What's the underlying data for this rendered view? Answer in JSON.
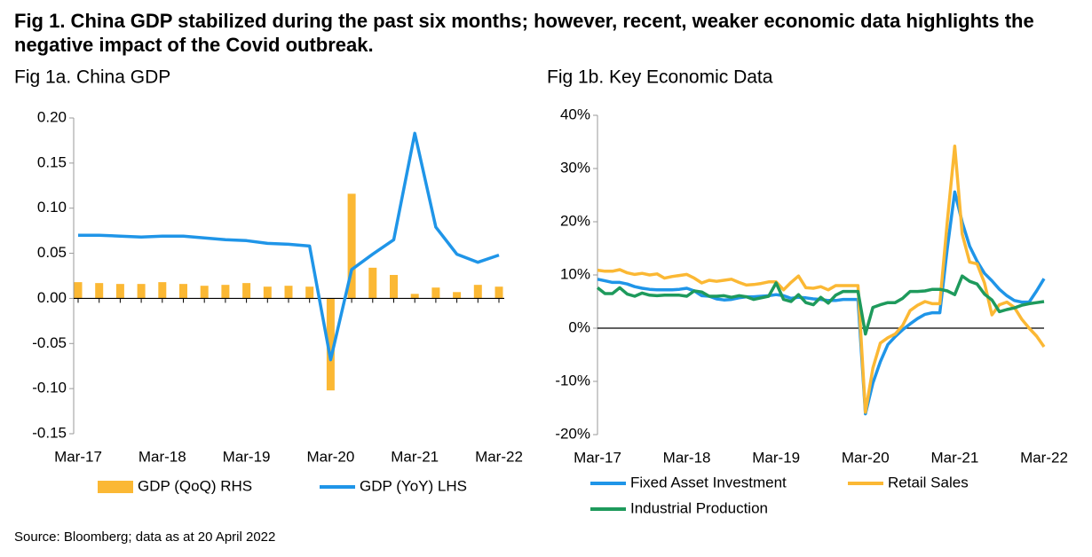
{
  "title": "Fig 1. China GDP stabilized during the past six months; however, recent, weaker economic data highlights the negative impact of the Covid outbreak.",
  "source": "Source: Bloomberg; data as at 20 April 2022",
  "chart_data": [
    {
      "type": "combo",
      "title": "Fig 1a. China GDP",
      "categories": [
        "Mar-17",
        null,
        null,
        null,
        "Mar-18",
        null,
        null,
        null,
        "Mar-19",
        null,
        null,
        null,
        "Mar-20",
        null,
        null,
        null,
        "Mar-21",
        null,
        null,
        null,
        "Mar-22"
      ],
      "series": [
        {
          "name": "GDP (QoQ) RHS",
          "type": "bar",
          "color": "#fbb834",
          "values": [
            0.018,
            0.017,
            0.016,
            0.016,
            0.018,
            0.016,
            0.014,
            0.015,
            0.017,
            0.013,
            0.014,
            0.013,
            -0.102,
            0.116,
            0.034,
            0.026,
            0.005,
            0.012,
            0.007,
            0.015,
            0.013
          ]
        },
        {
          "name": "GDP (YoY) LHS",
          "type": "line",
          "color": "#1f95e8",
          "values": [
            0.07,
            0.07,
            0.069,
            0.068,
            0.069,
            0.069,
            0.067,
            0.065,
            0.064,
            0.061,
            0.06,
            0.058,
            -0.068,
            0.032,
            0.049,
            0.065,
            0.183,
            0.079,
            0.049,
            0.04,
            0.048
          ]
        }
      ],
      "ylim": [
        -0.15,
        0.2
      ],
      "yticks": [
        {
          "value": -0.15,
          "label": "-0.15"
        },
        {
          "value": -0.1,
          "label": "-0.10"
        },
        {
          "value": -0.05,
          "label": "-0.05"
        },
        {
          "value": 0,
          "label": "0.00"
        },
        {
          "value": 0.05,
          "label": "0.05"
        },
        {
          "value": 0.1,
          "label": "0.10"
        },
        {
          "value": 0.15,
          "label": "0.15"
        },
        {
          "value": 0.2,
          "label": "0.20"
        }
      ]
    },
    {
      "type": "line",
      "title": "Fig 1b. Key Economic Data",
      "categories": [
        "Mar-17",
        null,
        null,
        null,
        null,
        null,
        null,
        null,
        null,
        null,
        null,
        null,
        "Mar-18",
        null,
        null,
        null,
        null,
        null,
        null,
        null,
        null,
        null,
        null,
        null,
        "Mar-19",
        null,
        null,
        null,
        null,
        null,
        null,
        null,
        null,
        null,
        null,
        null,
        "Mar-20",
        null,
        null,
        null,
        null,
        null,
        null,
        null,
        null,
        null,
        null,
        null,
        "Mar-21",
        null,
        null,
        null,
        null,
        null,
        null,
        null,
        null,
        null,
        null,
        null,
        "Mar-22"
      ],
      "series": [
        {
          "name": "Fixed Asset Investment",
          "color": "#1f95e8",
          "values": [
            9.2,
            8.9,
            8.6,
            8.6,
            8.3,
            7.8,
            7.5,
            7.3,
            7.2,
            7.2,
            7.2,
            7.3,
            7.5,
            7.0,
            6.1,
            6.0,
            5.5,
            5.3,
            5.4,
            5.7,
            5.9,
            5.9,
            6.0,
            6.1,
            6.3,
            6.1,
            5.6,
            5.8,
            5.7,
            5.5,
            5.4,
            5.2,
            5.2,
            5.4,
            5.4,
            5.4,
            -16.1,
            -10.3,
            -6.3,
            -3.1,
            -1.6,
            -0.3,
            0.8,
            1.8,
            2.6,
            2.9,
            2.9,
            15.0,
            25.6,
            19.9,
            15.4,
            12.6,
            10.3,
            8.9,
            7.3,
            6.1,
            5.2,
            4.9,
            4.9,
            7.0,
            9.3
          ]
        },
        {
          "name": "Retail Sales",
          "color": "#fbb834",
          "values": [
            10.9,
            10.7,
            10.7,
            11.0,
            10.4,
            10.1,
            10.3,
            10.0,
            10.2,
            9.4,
            9.7,
            9.9,
            10.1,
            9.4,
            8.5,
            9.0,
            8.8,
            9.0,
            9.2,
            8.6,
            8.1,
            8.2,
            8.4,
            8.7,
            8.7,
            7.2,
            8.6,
            9.8,
            7.6,
            7.5,
            7.8,
            7.2,
            8.0,
            8.0,
            8.0,
            8.0,
            -15.8,
            -7.5,
            -2.8,
            -1.8,
            -1.1,
            0.5,
            3.3,
            4.3,
            5.0,
            4.6,
            4.6,
            20.0,
            34.2,
            17.7,
            12.4,
            12.1,
            8.5,
            2.5,
            4.4,
            4.9,
            3.9,
            1.7,
            0.0,
            -1.5,
            -3.5
          ]
        },
        {
          "name": "Industrial Production",
          "color": "#1e9a5c",
          "values": [
            7.6,
            6.5,
            6.5,
            7.6,
            6.4,
            6.0,
            6.6,
            6.2,
            6.1,
            6.2,
            6.2,
            6.2,
            6.0,
            7.0,
            6.8,
            6.0,
            6.0,
            6.1,
            5.8,
            6.1,
            5.9,
            5.4,
            5.7,
            6.0,
            8.5,
            5.4,
            5.0,
            6.3,
            4.8,
            4.4,
            5.8,
            4.7,
            6.2,
            6.9,
            6.9,
            6.9,
            -1.1,
            3.9,
            4.4,
            4.8,
            4.8,
            5.6,
            6.9,
            6.9,
            7.0,
            7.3,
            7.3,
            7.0,
            6.3,
            9.8,
            8.8,
            8.3,
            6.4,
            5.3,
            3.1,
            3.5,
            3.8,
            4.3,
            4.6,
            4.8,
            5.0
          ]
        }
      ],
      "ylim": [
        -20,
        40
      ],
      "yticks": [
        {
          "value": -20,
          "label": "-20%"
        },
        {
          "value": -10,
          "label": "-10%"
        },
        {
          "value": 0,
          "label": "0%"
        },
        {
          "value": 10,
          "label": "10%"
        },
        {
          "value": 20,
          "label": "20%"
        },
        {
          "value": 30,
          "label": "30%"
        },
        {
          "value": 40,
          "label": "40%"
        }
      ]
    }
  ]
}
